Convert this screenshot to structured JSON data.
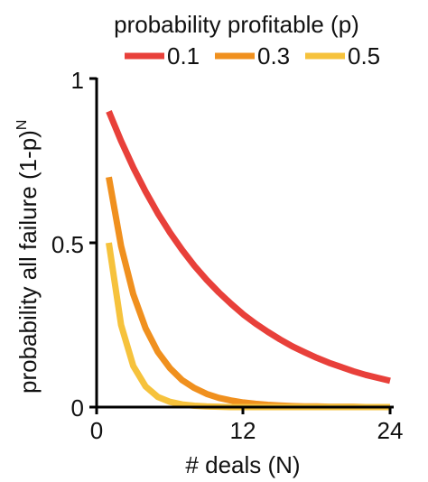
{
  "chart_data": {
    "type": "line",
    "title": "probability profitable (p)",
    "xlabel": "# deals (N)",
    "ylabel": "probability all failure (1-p)",
    "ylabel_superscript": "N",
    "xlim": [
      0,
      24
    ],
    "ylim": [
      0,
      1
    ],
    "x_ticks": [
      "0",
      "12",
      "24"
    ],
    "y_ticks": [
      "0",
      "0.5",
      "1"
    ],
    "grid": false,
    "legend_position": "top",
    "colors": {
      "p_0_1": "#e8403a",
      "p_0_3": "#f0901e",
      "p_0_5": "#f6c23c"
    },
    "series": [
      {
        "name": "0.1",
        "x": [
          1,
          2,
          3,
          4,
          5,
          6,
          7,
          8,
          9,
          10,
          11,
          12,
          13,
          14,
          15,
          16,
          17,
          18,
          19,
          20,
          21,
          22,
          23,
          24
        ],
        "values": [
          0.9,
          0.81,
          0.729,
          0.656,
          0.59,
          0.531,
          0.478,
          0.43,
          0.387,
          0.349,
          0.314,
          0.282,
          0.254,
          0.229,
          0.206,
          0.185,
          0.167,
          0.15,
          0.135,
          0.122,
          0.109,
          0.098,
          0.089,
          0.08
        ]
      },
      {
        "name": "0.3",
        "x": [
          1,
          2,
          3,
          4,
          5,
          6,
          7,
          8,
          9,
          10,
          11,
          12,
          13,
          14,
          15,
          16,
          17,
          18,
          19,
          20,
          21,
          22,
          23,
          24
        ],
        "values": [
          0.7,
          0.49,
          0.343,
          0.24,
          0.168,
          0.118,
          0.082,
          0.058,
          0.04,
          0.028,
          0.02,
          0.014,
          0.01,
          0.007,
          0.005,
          0.003,
          0.002,
          0.002,
          0.001,
          0.001,
          0.001,
          0.0,
          0.0,
          0.0
        ]
      },
      {
        "name": "0.5",
        "x": [
          1,
          2,
          3,
          4,
          5,
          6,
          7,
          8,
          9,
          10,
          11,
          12,
          13,
          14,
          15,
          16,
          17,
          18,
          19,
          20,
          21,
          22,
          23,
          24
        ],
        "values": [
          0.5,
          0.25,
          0.125,
          0.063,
          0.031,
          0.016,
          0.008,
          0.004,
          0.002,
          0.001,
          0.0,
          0.0,
          0.0,
          0.0,
          0.0,
          0.0,
          0.0,
          0.0,
          0.0,
          0.0,
          0.0,
          0.0,
          0.0,
          0.0
        ]
      }
    ]
  }
}
